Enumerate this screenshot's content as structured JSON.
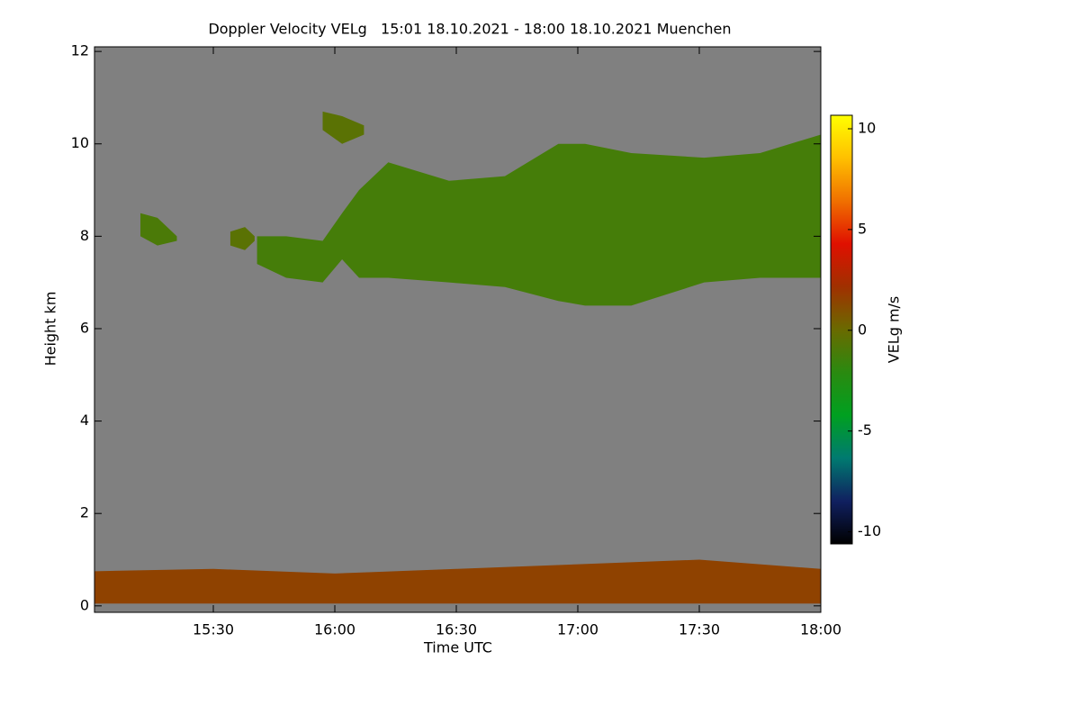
{
  "chart_data": {
    "type": "time-height",
    "title": "Doppler Velocity VELg   15:01 18.10.2021 - 18:00 18.10.2021 Muenchen",
    "x_label": "Time UTC",
    "y_label": "Height km",
    "colorbar_label": "VELg m/s",
    "xlim": [
      15.011,
      18.0
    ],
    "xticks": [
      {
        "value": 15.5,
        "label": "15:30"
      },
      {
        "value": 16.0,
        "label": "16:00"
      },
      {
        "value": 16.5,
        "label": "16:30"
      },
      {
        "value": 17.0,
        "label": "17:00"
      },
      {
        "value": 17.5,
        "label": "17:30"
      },
      {
        "value": 18.0,
        "label": "18:00"
      }
    ],
    "ylim": [
      -0.14,
      12.1
    ],
    "yticks": [
      0,
      2,
      4,
      6,
      8,
      10,
      12
    ],
    "clim": [
      -10.6,
      10.67
    ],
    "cticks": [
      -10,
      -5,
      0,
      5,
      10
    ],
    "colormap": [
      "#000000",
      "#102060",
      "#007a70",
      "#00a020",
      "#2a8a10",
      "#6a6a00",
      "#a03000",
      "#e01000",
      "#f07000",
      "#ffc000",
      "#ffff00"
    ],
    "background": "#808080",
    "layers": [
      {
        "x": [
          15.2,
          15.27,
          15.35
        ],
        "bottom": [
          8.0,
          7.8,
          7.9
        ],
        "top": [
          8.5,
          8.4,
          8.0
        ],
        "value": -1
      },
      {
        "x": [
          15.57,
          15.63,
          15.67
        ],
        "bottom": [
          7.8,
          7.7,
          7.9
        ],
        "top": [
          8.1,
          8.2,
          8.0
        ],
        "value": -0.5
      },
      {
        "x": [
          15.68,
          15.8,
          15.95,
          16.03,
          16.1,
          16.22,
          16.47,
          16.7,
          16.92,
          17.03,
          17.22,
          17.52,
          17.75,
          18.0
        ],
        "bottom": [
          7.4,
          7.1,
          7.0,
          7.5,
          7.1,
          7.1,
          7.0,
          6.9,
          6.6,
          6.5,
          6.5,
          7.0,
          7.1,
          7.1
        ],
        "top": [
          8.0,
          8.0,
          7.9,
          8.5,
          9.0,
          9.6,
          9.2,
          9.3,
          10.0,
          10.0,
          9.8,
          9.7,
          9.8,
          10.2
        ],
        "value": -1.2
      },
      {
        "x": [
          15.95,
          16.03,
          16.12
        ],
        "bottom": [
          10.3,
          10.0,
          10.2
        ],
        "top": [
          10.7,
          10.6,
          10.4
        ],
        "value": -0.5
      },
      {
        "x": [
          15.011,
          15.5,
          16.0,
          16.5,
          17.0,
          17.5,
          18.0
        ],
        "bottom": [
          0.05,
          0.05,
          0.05,
          0.05,
          0.05,
          0.05,
          0.05
        ],
        "top": [
          0.75,
          0.8,
          0.7,
          0.8,
          0.9,
          1.0,
          0.8
        ],
        "value": 1.5
      }
    ]
  }
}
